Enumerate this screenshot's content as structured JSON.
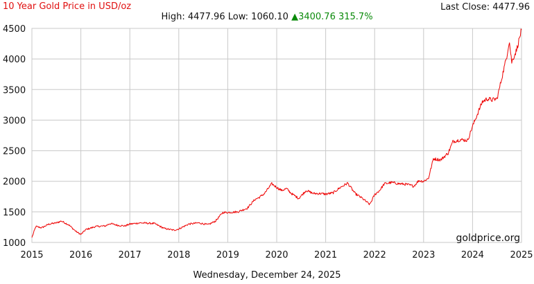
{
  "header": {
    "title": "10 Year Gold Price in USD/oz",
    "last_close_label": "Last Close:",
    "last_close_value": "4477.96",
    "high_label": "High:",
    "high_value": "4477.96",
    "low_label": "Low:",
    "low_value": "1060.10",
    "change_arrow": "▲",
    "change_value": "3400.76",
    "change_percent": "315.7%"
  },
  "footer": {
    "date": "Wednesday, December 24, 2025",
    "watermark": "goldprice.org"
  },
  "colors": {
    "series": "#ee0000",
    "title": "#e01010",
    "change_up": "#0a8a0a",
    "grid": "#c8c8c8"
  },
  "chart_data": {
    "type": "line",
    "title": "10 Year Gold Price in USD/oz",
    "xlabel": "",
    "ylabel": "",
    "xlim": [
      2015,
      2025
    ],
    "ylim": [
      1000,
      4500
    ],
    "grid": true,
    "x_ticks": [
      "2015",
      "2016",
      "2017",
      "2018",
      "2019",
      "2020",
      "2021",
      "2022",
      "2023",
      "2024",
      "2025"
    ],
    "y_ticks": [
      "1000",
      "1500",
      "2000",
      "2500",
      "3000",
      "3500",
      "4000",
      "4500"
    ],
    "series": [
      {
        "x": [
          2015.0,
          2015.08,
          2015.2,
          2015.35,
          2015.5,
          2015.6,
          2015.75,
          2015.9,
          2016.0,
          2016.1,
          2016.3,
          2016.5,
          2016.6,
          2016.75,
          2016.9,
          2017.0,
          2017.2,
          2017.5,
          2017.7,
          2017.9,
          2018.0,
          2018.2,
          2018.4,
          2018.6,
          2018.75,
          2018.9,
          2019.0,
          2019.2,
          2019.4,
          2019.55,
          2019.65,
          2019.75,
          2019.9,
          2020.0,
          2020.1,
          2020.2,
          2020.3,
          2020.45,
          2020.6,
          2020.75,
          2020.9,
          2021.0,
          2021.15,
          2021.3,
          2021.45,
          2021.6,
          2021.75,
          2021.9,
          2022.0,
          2022.1,
          2022.2,
          2022.35,
          2022.5,
          2022.65,
          2022.8,
          2022.9,
          2023.0,
          2023.1,
          2023.2,
          2023.35,
          2023.5,
          2023.6,
          2023.75,
          2023.9,
          2024.0,
          2024.1,
          2024.2,
          2024.3,
          2024.4,
          2024.5,
          2024.6,
          2024.7,
          2024.75,
          2024.8,
          2024.9,
          2025.0
        ],
        "y": [
          1080,
          1260,
          1240,
          1300,
          1320,
          1350,
          1290,
          1180,
          1130,
          1210,
          1260,
          1270,
          1310,
          1280,
          1270,
          1300,
          1320,
          1310,
          1230,
          1200,
          1220,
          1300,
          1320,
          1290,
          1350,
          1490,
          1490,
          1500,
          1560,
          1700,
          1740,
          1800,
          1960,
          1900,
          1850,
          1880,
          1800,
          1720,
          1850,
          1800,
          1800,
          1790,
          1810,
          1900,
          1970,
          1800,
          1720,
          1620,
          1780,
          1850,
          1960,
          1980,
          1960,
          1950,
          1920,
          2010,
          2000,
          2050,
          2370,
          2350,
          2460,
          2650,
          2680,
          2670,
          2900,
          3100,
          3300,
          3350,
          3330,
          3350,
          3700,
          4050,
          4300,
          3950,
          4150,
          4478
        ]
      }
    ]
  }
}
